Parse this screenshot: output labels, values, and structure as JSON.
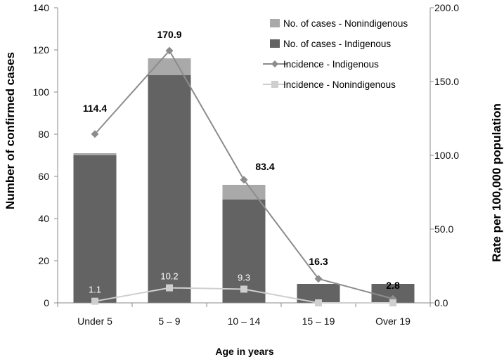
{
  "chart_data": {
    "type": "bar",
    "categories": [
      "Under 5",
      "5 – 9",
      "10 – 14",
      "15 – 19",
      "Over 19"
    ],
    "xlabel": "Age in years",
    "ylabel": "Number of confirmed cases",
    "y2label": "Rate per 100,000 population",
    "ylim": [
      0,
      140
    ],
    "y2lim": [
      0,
      200
    ],
    "yticks": [
      "0",
      "20",
      "40",
      "60",
      "80",
      "100",
      "120",
      "140"
    ],
    "y2ticks": [
      "0.0",
      "50.0",
      "100.0",
      "150.0",
      "200.0"
    ],
    "series": [
      {
        "name": "No. of cases - Nonindigenous",
        "kind": "bar-stacked",
        "axis": "left",
        "color": "#a9a9a9",
        "values": [
          1,
          8,
          7,
          0,
          0
        ]
      },
      {
        "name": "No. of cases - Indigenous",
        "kind": "bar-stacked",
        "axis": "left",
        "color": "#636363",
        "values": [
          70,
          108,
          49,
          9,
          9
        ]
      },
      {
        "name": "Incidence - Indigenous",
        "kind": "line",
        "marker": "diamond",
        "axis": "right",
        "color": "#8c8c8c",
        "values": [
          114.4,
          170.9,
          83.4,
          16.3,
          2.8
        ],
        "labels": [
          "114.4",
          "170.9",
          "83.4",
          "16.3",
          "2.8"
        ]
      },
      {
        "name": "Incidence - Nonindigenous",
        "kind": "line",
        "marker": "square",
        "axis": "right",
        "color": "#cfcfcf",
        "values": [
          1.1,
          10.2,
          9.3,
          0,
          0
        ],
        "labels": [
          "1.1",
          "10.2",
          "9.3",
          "",
          ""
        ]
      }
    ],
    "legend": "top-right",
    "grid": false
  }
}
